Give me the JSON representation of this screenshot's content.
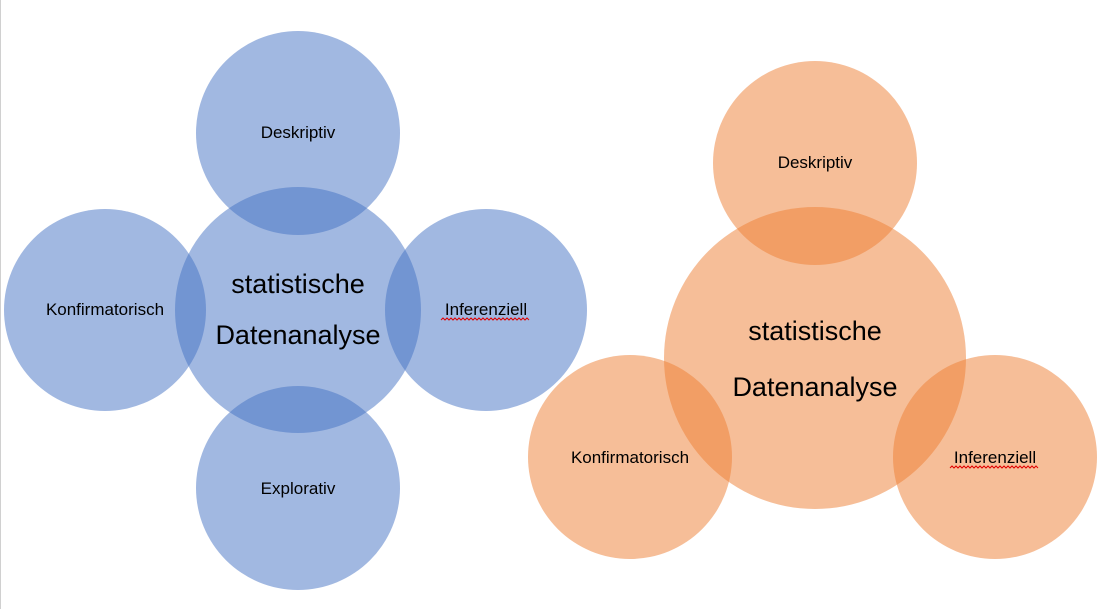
{
  "colors": {
    "blue_fill": "#4472c4",
    "orange_fill": "#ed7d31"
  },
  "diagram_left": {
    "center": {
      "line1": "statistische",
      "line2": "Datenanalyse"
    },
    "top": "Deskriptiv",
    "left": "Konfirmatorisch",
    "right": "Inferenziell",
    "bottom": "Explorativ"
  },
  "diagram_right": {
    "center": {
      "line1": "statistische",
      "line2": "Datenanalyse"
    },
    "top": "Deskriptiv",
    "left": "Konfirmatorisch",
    "right": "Inferenziell"
  }
}
